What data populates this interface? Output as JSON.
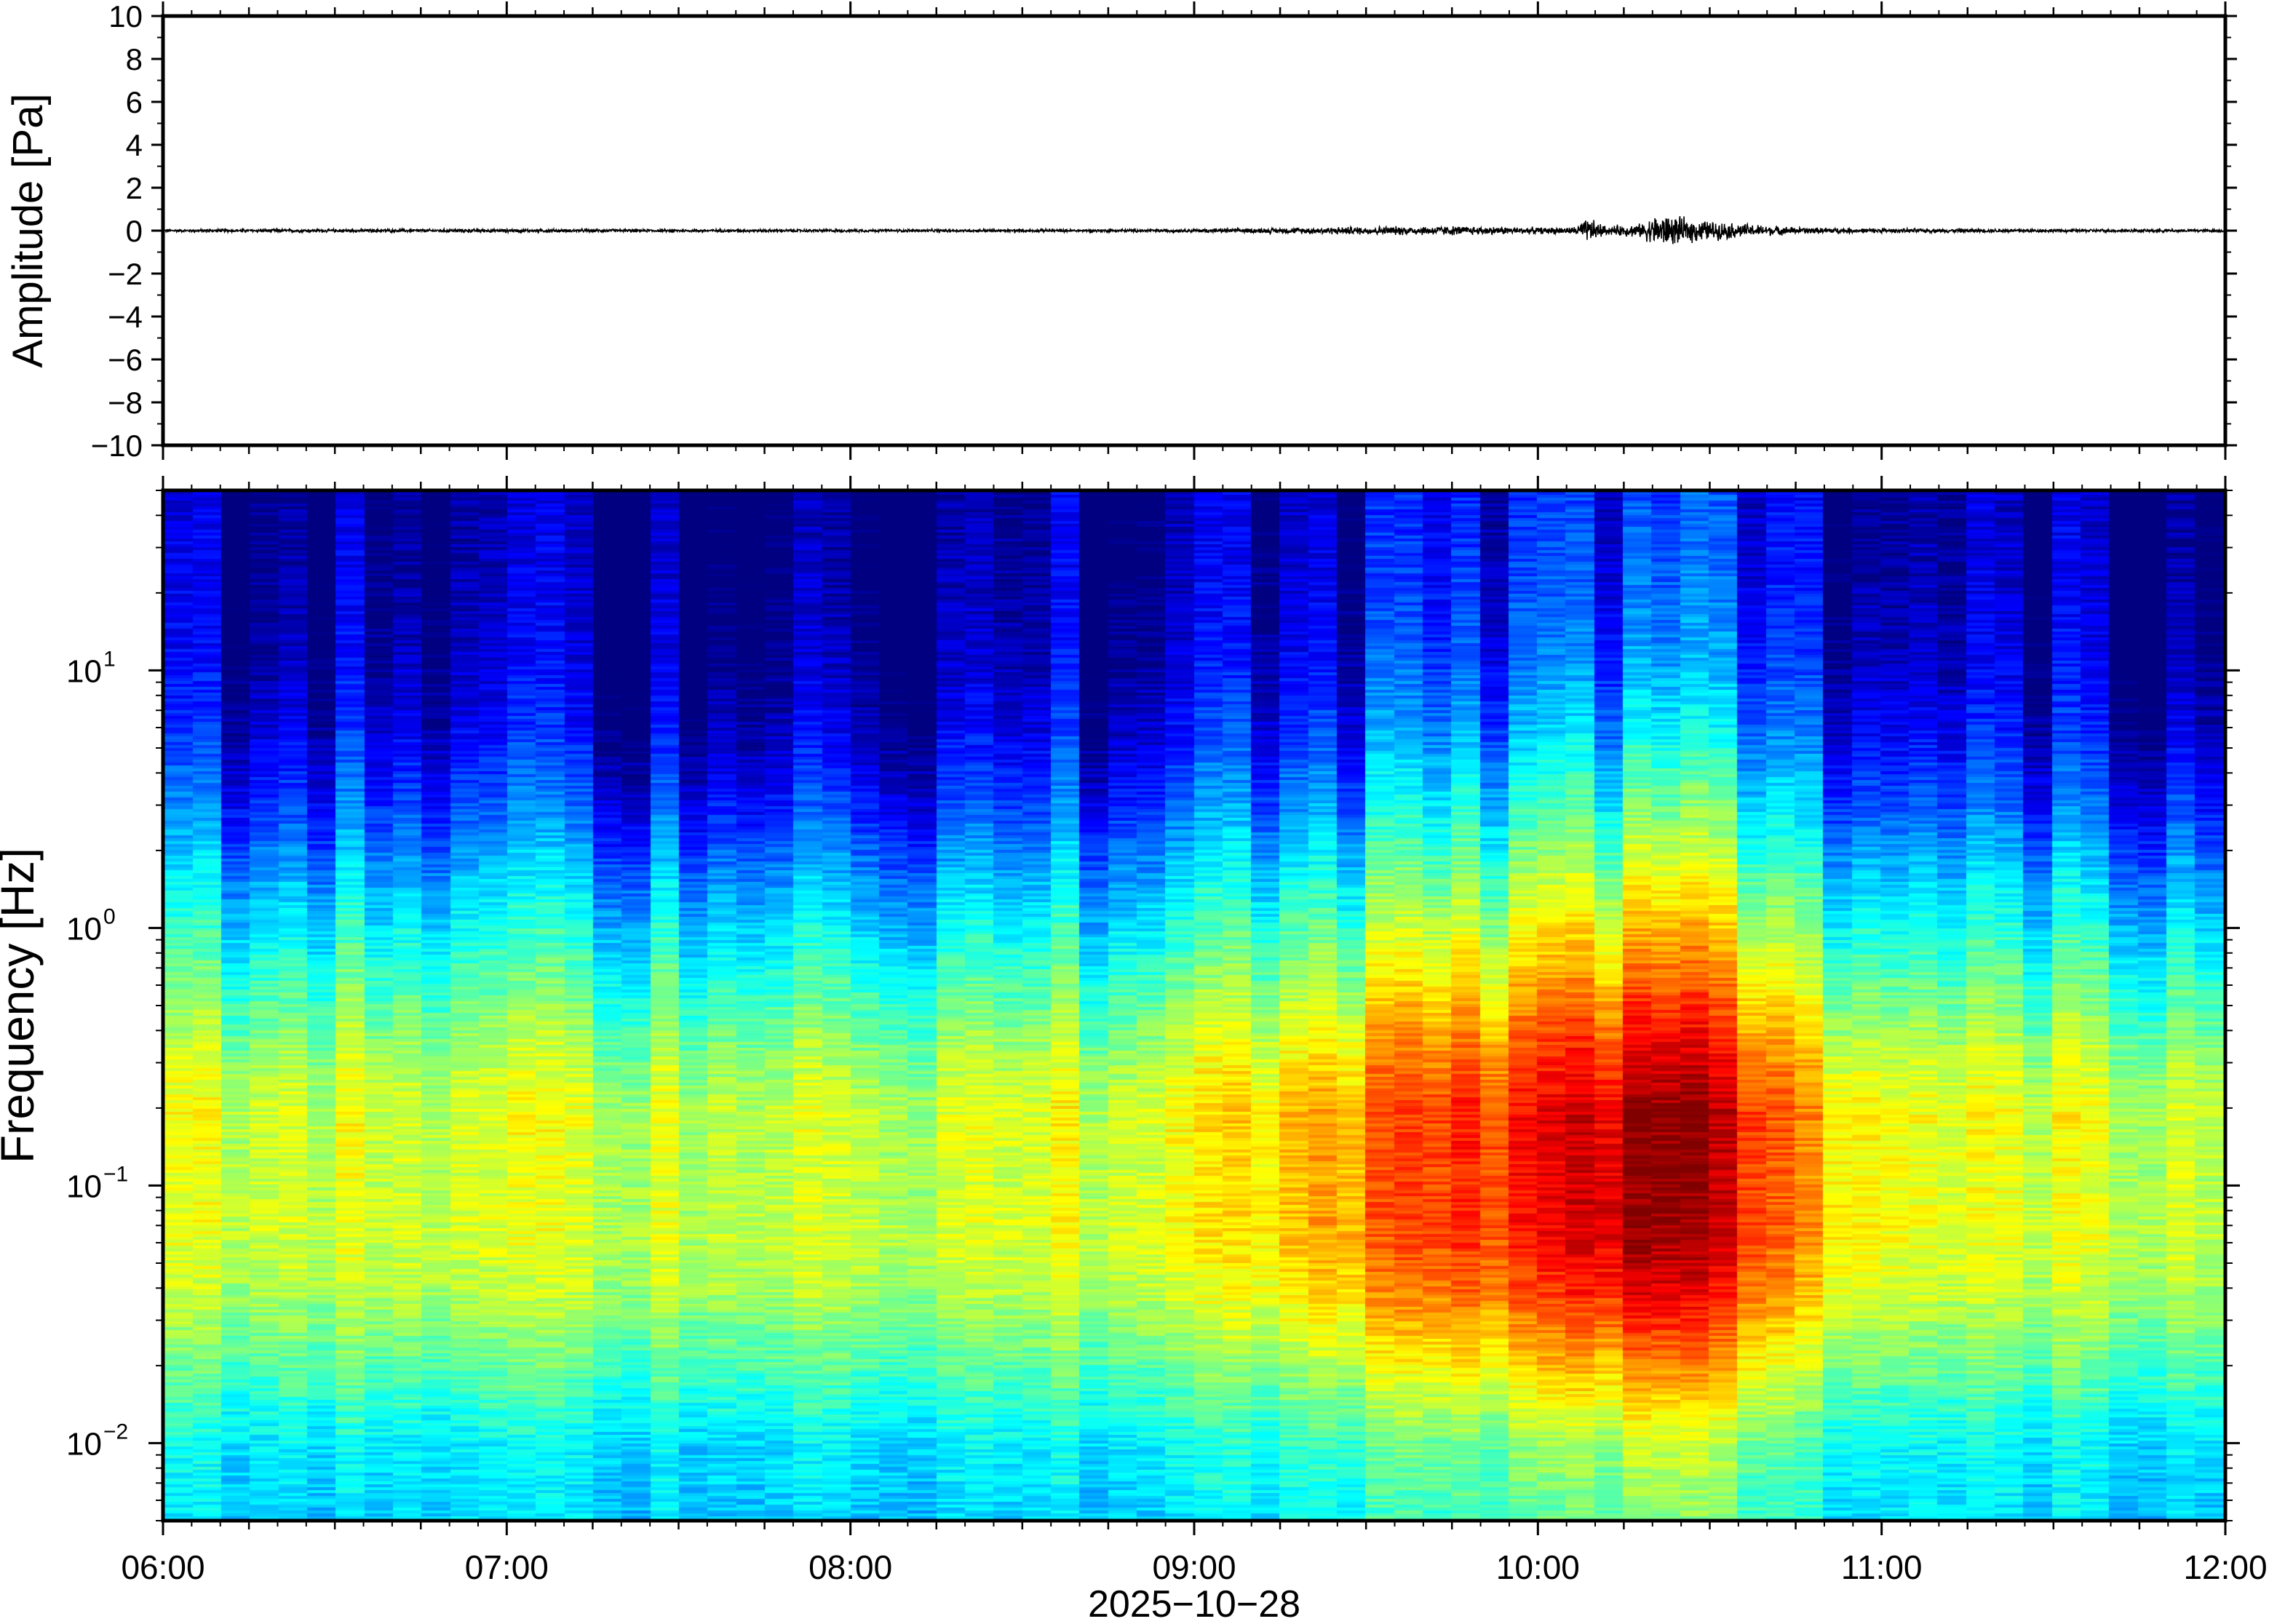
{
  "chart_data": [
    {
      "type": "line",
      "panel": "waveform",
      "ylabel": "Amplitude [Pa]",
      "ylim": [
        -10,
        10
      ],
      "yticks": [
        10,
        8,
        6,
        4,
        2,
        0,
        -2,
        -4,
        -6,
        -8,
        -10
      ],
      "ytick_labels": [
        "10",
        "8",
        "6",
        "4",
        "2",
        "0",
        "−2",
        "−4",
        "−6",
        "−8",
        "−10"
      ],
      "xlim_hours": [
        6,
        12
      ],
      "envelope": {
        "x_hours": [
          6.0,
          6.5,
          7.0,
          7.5,
          8.0,
          8.5,
          9.0,
          9.25,
          9.5,
          9.75,
          10.0,
          10.1,
          10.15,
          10.2,
          10.3,
          10.35,
          10.4,
          10.5,
          10.6,
          10.75,
          11.0,
          11.5,
          12.0
        ],
        "amp_pa": [
          0.05,
          0.06,
          0.06,
          0.05,
          0.05,
          0.05,
          0.06,
          0.1,
          0.15,
          0.17,
          0.12,
          0.12,
          0.45,
          0.15,
          0.25,
          0.6,
          0.5,
          0.35,
          0.25,
          0.12,
          0.08,
          0.06,
          0.05
        ]
      }
    },
    {
      "type": "heatmap",
      "panel": "spectrogram",
      "ylabel": "Frequency [Hz]",
      "yscale": "log",
      "ylim_hz": [
        0.005,
        50
      ],
      "ytick_values": [
        0.01,
        0.1,
        1,
        10
      ],
      "ytick_labels": [
        {
          "base": "10",
          "exp": "−2"
        },
        {
          "base": "10",
          "exp": "−1"
        },
        {
          "base": "10",
          "exp": "0"
        },
        {
          "base": "10",
          "exp": "1"
        }
      ],
      "xlim_hours": [
        6,
        12
      ],
      "colormap": "jet (low = dark blue, high = red)",
      "grid": false,
      "relative_power": {
        "freqs_hz": [
          0.005,
          0.01,
          0.02,
          0.04,
          0.07,
          0.1,
          0.2,
          0.35,
          0.7,
          1.5,
          3,
          6,
          12,
          25,
          50
        ],
        "baseline": [
          0.33,
          0.36,
          0.46,
          0.55,
          0.58,
          0.57,
          0.58,
          0.52,
          0.42,
          0.3,
          0.18,
          0.09,
          0.04,
          0.02,
          0.01
        ],
        "events": [
          {
            "center_hour": 9.75,
            "width_hours": 0.45,
            "boost": 0.07
          },
          {
            "center_hour": 10.4,
            "width_hours": 0.35,
            "boost": 0.16
          },
          {
            "center_hour": 10.0,
            "width_hours": 0.9,
            "boost": 0.06
          }
        ]
      }
    }
  ],
  "xaxis": {
    "tick_hours": [
      6,
      7,
      8,
      9,
      10,
      11,
      12
    ],
    "tick_labels": [
      "06:00",
      "07:00",
      "08:00",
      "09:00",
      "10:00",
      "11:00",
      "12:00"
    ],
    "date_label": "2025−10−28"
  },
  "colors": {
    "frame": "#000000",
    "trace": "#000000",
    "background": "#ffffff"
  }
}
